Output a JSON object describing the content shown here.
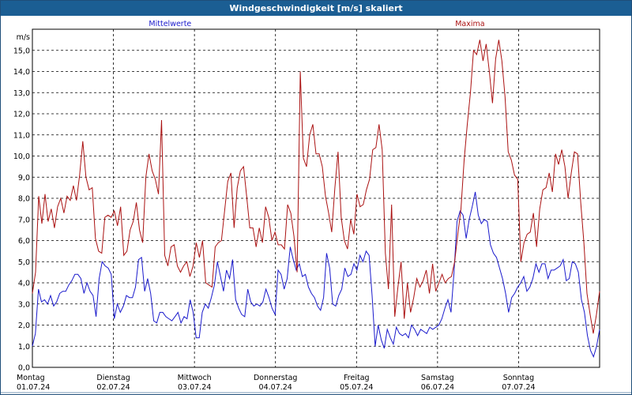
{
  "window": {
    "title": "Windgeschwindigkeit [m/s] skaliert"
  },
  "chart_data": {
    "type": "line",
    "ylabel": "m/s",
    "ylim": [
      0,
      16
    ],
    "yticks": [
      "0,0",
      "1,0",
      "2,0",
      "3,0",
      "4,0",
      "5,0",
      "6,0",
      "7,0",
      "8,0",
      "9,0",
      "10,0",
      "11,0",
      "12,0",
      "13,0",
      "14,0",
      "15,0"
    ],
    "xlim": [
      0,
      7
    ],
    "grid": true,
    "days": [
      {
        "weekday": "Montag",
        "date": "01.07.24"
      },
      {
        "weekday": "Dienstag",
        "date": "02.07.24"
      },
      {
        "weekday": "Mittwoch",
        "date": "03.07.24"
      },
      {
        "weekday": "Donnerstag",
        "date": "04.07.24"
      },
      {
        "weekday": "Freitag",
        "date": "05.07.24"
      },
      {
        "weekday": "Samstag",
        "date": "06.07.24"
      },
      {
        "weekday": "Sonntag",
        "date": "07.07.24"
      }
    ],
    "series": [
      {
        "name": "Mittelwerte",
        "color": "#1a1acc",
        "values": [
          1.0,
          1.6,
          3.7,
          3.1,
          3.2,
          3.0,
          3.4,
          2.9,
          3.1,
          3.5,
          3.6,
          3.6,
          3.9,
          4.1,
          4.4,
          4.4,
          4.2,
          3.5,
          4.0,
          3.6,
          3.4,
          2.4,
          4.2,
          5.0,
          4.8,
          4.7,
          4.4,
          2.3,
          3.0,
          2.6,
          2.9,
          3.4,
          3.3,
          3.3,
          3.8,
          5.1,
          5.2,
          3.6,
          4.2,
          3.5,
          2.2,
          2.1,
          2.6,
          2.6,
          2.4,
          2.3,
          2.2,
          2.4,
          2.6,
          2.1,
          2.4,
          2.3,
          3.2,
          2.6,
          1.4,
          1.4,
          2.6,
          3.0,
          2.8,
          3.3,
          3.9,
          5.0,
          4.3,
          3.6,
          4.6,
          4.2,
          5.1,
          3.2,
          2.8,
          2.5,
          2.4,
          3.7,
          3.1,
          2.9,
          3.0,
          2.9,
          3.1,
          3.7,
          3.3,
          2.8,
          2.5,
          4.6,
          4.4,
          3.7,
          4.2,
          5.7,
          5.1,
          4.6,
          4.9,
          4.3,
          4.4,
          3.8,
          3.5,
          3.3,
          2.9,
          2.7,
          3.3,
          5.4,
          4.7,
          3.0,
          2.9,
          3.4,
          3.7,
          4.7,
          4.3,
          4.4,
          4.9,
          4.6,
          5.3,
          5.0,
          5.5,
          5.3,
          3.4,
          1.0,
          2.0,
          1.3,
          0.9,
          1.8,
          1.4,
          1.1,
          1.9,
          1.6,
          1.5,
          1.6,
          1.4,
          2.0,
          1.8,
          1.5,
          1.8,
          1.7,
          1.6,
          1.9,
          1.8,
          1.9,
          2.0,
          2.3,
          2.8,
          3.2,
          2.6,
          4.5,
          6.9,
          7.4,
          7.2,
          6.1,
          7.0,
          7.6,
          8.3,
          7.2,
          6.8,
          7.0,
          6.9,
          5.8,
          5.4,
          5.2,
          4.7,
          4.2,
          3.5,
          2.6,
          3.3,
          3.5,
          3.8,
          4.0,
          4.3,
          3.6,
          3.8,
          4.2,
          4.9,
          4.5,
          4.9,
          4.9,
          4.2,
          4.6,
          4.6,
          4.7,
          4.8,
          5.1,
          4.1,
          4.2,
          5.0,
          4.9,
          4.5,
          3.2,
          2.6,
          1.5,
          0.8,
          0.5,
          1.0,
          1.8
        ]
      },
      {
        "name": "Maxima",
        "color": "#aa1111",
        "values": [
          3.5,
          4.5,
          8.1,
          6.8,
          8.2,
          6.9,
          7.5,
          6.6,
          7.6,
          8.0,
          7.3,
          8.1,
          7.9,
          8.6,
          7.9,
          9.1,
          10.7,
          9.0,
          8.4,
          8.5,
          6.1,
          5.5,
          5.4,
          7.1,
          7.2,
          7.1,
          7.4,
          6.7,
          7.6,
          5.3,
          5.5,
          6.5,
          6.9,
          7.8,
          6.5,
          5.9,
          9.0,
          10.1,
          9.3,
          8.9,
          8.2,
          11.7,
          5.3,
          4.8,
          5.7,
          5.8,
          4.8,
          4.5,
          4.8,
          5.0,
          4.3,
          4.8,
          5.9,
          5.2,
          6.0,
          4.0,
          3.9,
          3.8,
          5.7,
          5.9,
          6.0,
          7.4,
          8.8,
          9.2,
          6.6,
          8.5,
          9.3,
          9.5,
          8.1,
          6.6,
          6.6,
          5.7,
          6.6,
          5.9,
          7.6,
          7.1,
          6.0,
          6.4,
          5.8,
          5.8,
          5.6,
          7.7,
          7.3,
          6.2,
          4.5,
          14.0,
          9.9,
          9.5,
          11.0,
          11.5,
          10.1,
          10.1,
          9.5,
          8.1,
          7.3,
          6.4,
          8.5,
          10.2,
          7.1,
          6.0,
          5.6,
          7.0,
          6.3,
          8.2,
          7.6,
          7.7,
          8.4,
          8.9,
          10.3,
          10.4,
          11.5,
          10.3,
          5.4,
          3.7,
          7.7,
          2.4,
          3.8,
          5.0,
          2.3,
          4.0,
          2.6,
          3.3,
          4.2,
          3.8,
          4.1,
          4.6,
          3.5,
          4.9,
          3.6,
          4.0,
          4.4,
          4.0,
          4.2,
          4.3,
          5.0,
          6.3,
          7.5,
          9.8,
          11.5,
          13.0,
          15.0,
          14.8,
          15.5,
          14.5,
          15.3,
          14.0,
          12.5,
          14.6,
          15.5,
          14.5,
          12.8,
          10.2,
          9.8,
          9.1,
          8.9,
          5.0,
          5.9,
          6.3,
          6.4,
          7.3,
          5.7,
          7.5,
          8.4,
          8.5,
          9.2,
          8.3,
          10.1,
          9.6,
          10.3,
          9.5,
          8.0,
          9.2,
          10.2,
          10.1,
          7.8,
          5.9,
          3.5,
          2.5,
          1.6,
          2.5,
          3.6
        ]
      }
    ]
  }
}
